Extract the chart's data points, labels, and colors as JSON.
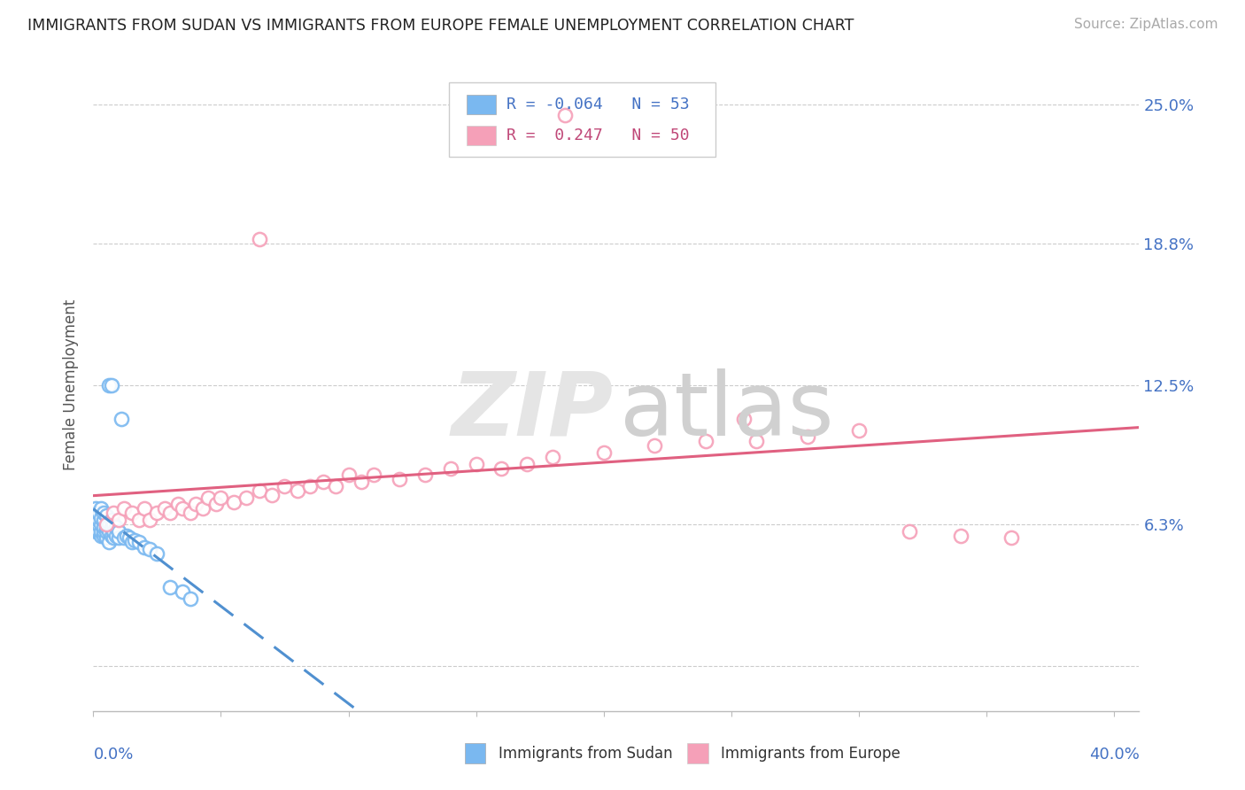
{
  "title": "IMMIGRANTS FROM SUDAN VS IMMIGRANTS FROM EUROPE FEMALE UNEMPLOYMENT CORRELATION CHART",
  "source": "Source: ZipAtlas.com",
  "ylabel": "Female Unemployment",
  "ytick_vals": [
    0.0,
    0.063,
    0.125,
    0.188,
    0.25
  ],
  "ytick_labels": [
    "",
    "6.3%",
    "12.5%",
    "18.8%",
    "25.0%"
  ],
  "xlim": [
    0.0,
    0.41
  ],
  "ylim": [
    -0.02,
    0.27
  ],
  "legend_R1": "-0.064",
  "legend_N1": "53",
  "legend_R2": " 0.247",
  "legend_N2": "50",
  "color_sudan": "#7ab8f0",
  "color_europe": "#f5a0b8",
  "color_sudan_text": "#4472c4",
  "color_europe_text": "#c04878",
  "color_sudan_line": "#5090d0",
  "color_europe_line": "#e06080",
  "n_sudan": 53,
  "n_europe": 50
}
